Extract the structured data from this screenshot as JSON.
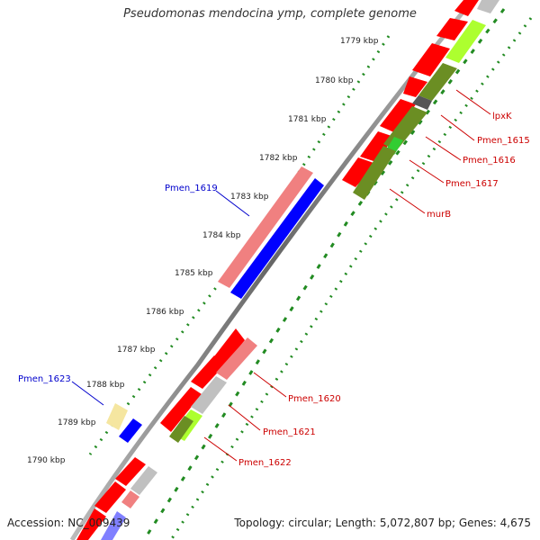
{
  "title": "Pseudomonas mendocina ymp, complete genome",
  "footer": {
    "accession": "Accession: NC_009439",
    "summary": "Topology: circular; Length: 5,072,807 bp; Genes: 4,675"
  },
  "ticks": [
    {
      "label": "1779 kbp"
    },
    {
      "label": "1780 kbp"
    },
    {
      "label": "1781 kbp"
    },
    {
      "label": "1782 kbp"
    },
    {
      "label": "1783 kbp"
    },
    {
      "label": "1784 kbp"
    },
    {
      "label": "1785 kbp"
    },
    {
      "label": "1786 kbp"
    },
    {
      "label": "1787 kbp"
    },
    {
      "label": "1788 kbp"
    },
    {
      "label": "1789 kbp"
    },
    {
      "label": "1790 kbp"
    }
  ],
  "gene_labels": [
    {
      "name": "Pmen_1619",
      "color": "#0000cc"
    },
    {
      "name": "Pmen_1623",
      "color": "#0000cc"
    },
    {
      "name": "lpxK",
      "color": "#cc0000"
    },
    {
      "name": "Pmen_1615",
      "color": "#cc0000"
    },
    {
      "name": "Pmen_1616",
      "color": "#cc0000"
    },
    {
      "name": "Pmen_1617",
      "color": "#cc0000"
    },
    {
      "name": "murB",
      "color": "#cc0000"
    },
    {
      "name": "Pmen_1620",
      "color": "#cc0000"
    },
    {
      "name": "Pmen_1621",
      "color": "#cc0000"
    },
    {
      "name": "Pmen_1622",
      "color": "#cc0000"
    }
  ],
  "colors": {
    "forward_cds": "#ff0000",
    "reverse_cds": "#0000ff",
    "highlight_forward": "#f08080",
    "cog_olive": "#6b8e23",
    "cog_lime": "#adff2f",
    "cog_gray": "#c0c0c0",
    "tick_green": "#228b22",
    "backbone": "#808080"
  }
}
